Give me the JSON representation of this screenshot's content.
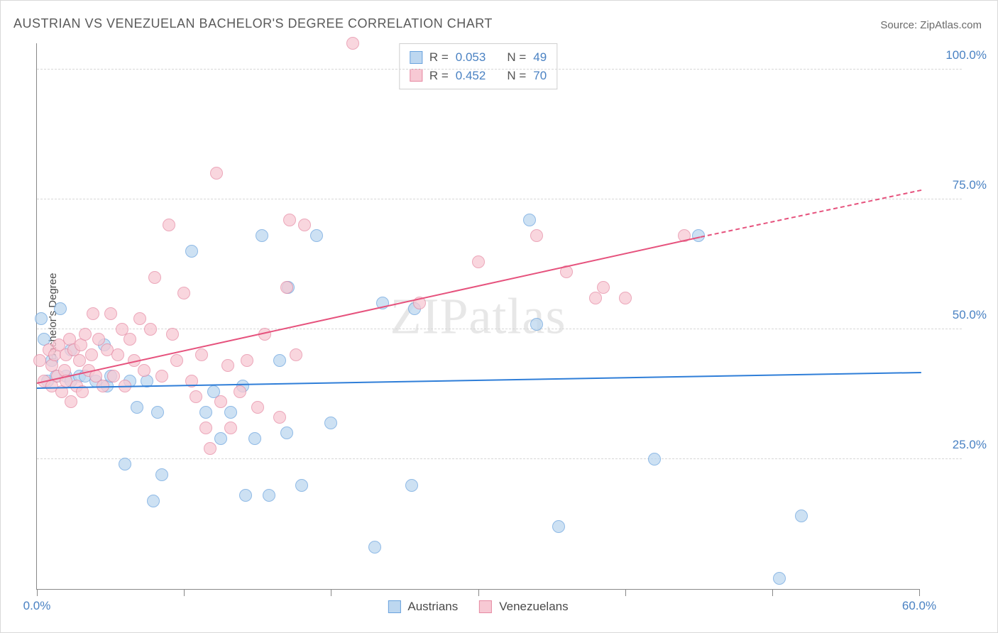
{
  "title": "AUSTRIAN VS VENEZUELAN BACHELOR'S DEGREE CORRELATION CHART",
  "source_label": "Source: ",
  "source_name": "ZipAtlas.com",
  "ylabel": "Bachelor's Degree",
  "watermark_a": "ZIP",
  "watermark_b": "atlas",
  "chart": {
    "type": "scatter",
    "xlim": [
      0,
      60
    ],
    "ylim": [
      0,
      105
    ],
    "x_ticks": [
      0,
      10,
      20,
      30,
      40,
      50,
      60
    ],
    "x_tick_labels": {
      "0": "0.0%",
      "60": "60.0%"
    },
    "y_gridlines": [
      25,
      50,
      75,
      100
    ],
    "y_tick_labels": {
      "25": "25.0%",
      "50": "50.0%",
      "75": "75.0%",
      "100": "100.0%"
    },
    "background_color": "#ffffff",
    "grid_color": "#d7d7d7",
    "axis_color": "#888888",
    "label_color": "#4a82c3",
    "marker_radius": 9,
    "marker_opacity": 0.75,
    "series": [
      {
        "name": "Austrians",
        "fill": "#bdd7f0",
        "stroke": "#6aa3de",
        "trend_color": "#2f7ed8",
        "R": "0.053",
        "N": "49",
        "trend": {
          "x1": 0,
          "y1": 39,
          "x2": 60,
          "y2": 42
        },
        "points": [
          [
            0.3,
            52
          ],
          [
            0.5,
            48
          ],
          [
            0.7,
            40
          ],
          [
            1.0,
            44
          ],
          [
            1.3,
            41
          ],
          [
            1.6,
            54
          ],
          [
            2.0,
            41
          ],
          [
            2.3,
            40
          ],
          [
            2.3,
            46
          ],
          [
            2.9,
            41
          ],
          [
            3.3,
            41
          ],
          [
            4.0,
            40
          ],
          [
            4.6,
            47
          ],
          [
            4.8,
            39
          ],
          [
            5.0,
            41
          ],
          [
            6.0,
            24
          ],
          [
            6.3,
            40
          ],
          [
            6.8,
            35
          ],
          [
            7.5,
            40
          ],
          [
            7.9,
            17
          ],
          [
            8.2,
            34
          ],
          [
            8.5,
            22
          ],
          [
            10.5,
            65
          ],
          [
            11.5,
            34
          ],
          [
            12.0,
            38
          ],
          [
            12.5,
            29
          ],
          [
            13.2,
            34
          ],
          [
            14.0,
            39
          ],
          [
            14.2,
            18
          ],
          [
            14.8,
            29
          ],
          [
            15.3,
            68
          ],
          [
            15.8,
            18
          ],
          [
            16.5,
            44
          ],
          [
            17.0,
            30
          ],
          [
            17.1,
            58
          ],
          [
            18.0,
            20
          ],
          [
            19.0,
            68
          ],
          [
            20.0,
            32
          ],
          [
            23.0,
            8
          ],
          [
            23.5,
            55
          ],
          [
            25.5,
            20
          ],
          [
            25.7,
            54
          ],
          [
            33.5,
            71
          ],
          [
            34.0,
            51
          ],
          [
            35.5,
            12
          ],
          [
            42.0,
            25
          ],
          [
            45.0,
            68
          ],
          [
            50.5,
            2
          ],
          [
            52.0,
            14
          ]
        ]
      },
      {
        "name": "Venezuelans",
        "fill": "#f7c9d4",
        "stroke": "#e68aa3",
        "trend_color": "#e6527d",
        "R": "0.452",
        "N": "70",
        "trend": {
          "x1": 0,
          "y1": 40,
          "x2": 45,
          "y2": 68
        },
        "trend_dash": {
          "x1": 45,
          "y1": 68,
          "x2": 60,
          "y2": 77
        },
        "points": [
          [
            0.2,
            44
          ],
          [
            0.5,
            40
          ],
          [
            0.8,
            46
          ],
          [
            1.0,
            39
          ],
          [
            1.0,
            43
          ],
          [
            1.2,
            45
          ],
          [
            1.4,
            41
          ],
          [
            1.5,
            47
          ],
          [
            1.7,
            38
          ],
          [
            1.9,
            42
          ],
          [
            2.0,
            45
          ],
          [
            2.0,
            40
          ],
          [
            2.2,
            48
          ],
          [
            2.3,
            36
          ],
          [
            2.5,
            46
          ],
          [
            2.7,
            39
          ],
          [
            2.9,
            44
          ],
          [
            3.0,
            47
          ],
          [
            3.1,
            38
          ],
          [
            3.3,
            49
          ],
          [
            3.5,
            42
          ],
          [
            3.7,
            45
          ],
          [
            3.8,
            53
          ],
          [
            4.0,
            41
          ],
          [
            4.2,
            48
          ],
          [
            4.5,
            39
          ],
          [
            4.8,
            46
          ],
          [
            5.0,
            53
          ],
          [
            5.2,
            41
          ],
          [
            5.5,
            45
          ],
          [
            5.8,
            50
          ],
          [
            6.0,
            39
          ],
          [
            6.3,
            48
          ],
          [
            6.6,
            44
          ],
          [
            7.0,
            52
          ],
          [
            7.3,
            42
          ],
          [
            7.7,
            50
          ],
          [
            8.0,
            60
          ],
          [
            8.5,
            41
          ],
          [
            9.0,
            70
          ],
          [
            9.2,
            49
          ],
          [
            9.5,
            44
          ],
          [
            10.0,
            57
          ],
          [
            10.5,
            40
          ],
          [
            10.8,
            37
          ],
          [
            11.2,
            45
          ],
          [
            11.5,
            31
          ],
          [
            11.8,
            27
          ],
          [
            12.2,
            80
          ],
          [
            12.5,
            36
          ],
          [
            13.0,
            43
          ],
          [
            13.2,
            31
          ],
          [
            13.8,
            38
          ],
          [
            14.3,
            44
          ],
          [
            15.0,
            35
          ],
          [
            15.5,
            49
          ],
          [
            16.5,
            33
          ],
          [
            17.0,
            58
          ],
          [
            17.2,
            71
          ],
          [
            17.6,
            45
          ],
          [
            18.2,
            70
          ],
          [
            21.5,
            105
          ],
          [
            26.0,
            55
          ],
          [
            30.0,
            63
          ],
          [
            34.0,
            68
          ],
          [
            36.0,
            61
          ],
          [
            38.0,
            56
          ],
          [
            38.5,
            58
          ],
          [
            40.0,
            56
          ],
          [
            44.0,
            68
          ]
        ]
      }
    ],
    "legend_top": [
      {
        "swatch_fill": "#bdd7f0",
        "swatch_stroke": "#6aa3de",
        "r_label": "R =",
        "r_val": "0.053",
        "n_label": "N =",
        "n_val": "49"
      },
      {
        "swatch_fill": "#f7c9d4",
        "swatch_stroke": "#e68aa3",
        "r_label": "R =",
        "r_val": "0.452",
        "n_label": "N =",
        "n_val": "70"
      }
    ],
    "legend_bottom": [
      {
        "swatch_fill": "#bdd7f0",
        "swatch_stroke": "#6aa3de",
        "label": "Austrians"
      },
      {
        "swatch_fill": "#f7c9d4",
        "swatch_stroke": "#e68aa3",
        "label": "Venezuelans"
      }
    ]
  }
}
